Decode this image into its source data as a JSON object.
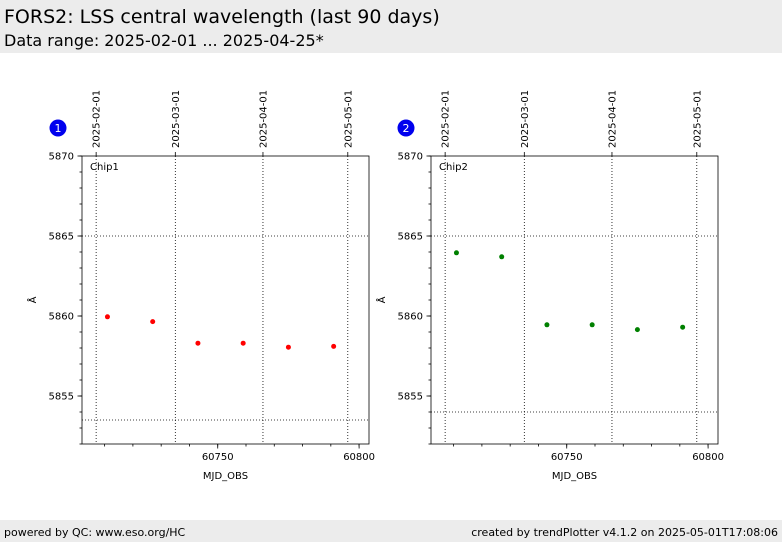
{
  "header": {
    "title": "FORS2: LSS central wavelength (last 90 days)",
    "subtitle": "Data range: 2025-02-01 ... 2025-04-25*"
  },
  "footer": {
    "left": "powered by QC: www.eso.org/HC",
    "right": "created by trendPlotter v4.1.2 on 2025-05-01T17:08:06"
  },
  "colors": {
    "chip1": "#ff0000",
    "chip2": "#008000",
    "badge": "#0000ee",
    "header_bg": "#ececec"
  },
  "chart_data": [
    {
      "type": "scatter",
      "badge": "1",
      "label": "Chip1",
      "xlabel": "MJD_OBS",
      "ylabel": "Å",
      "xlim": [
        60702.0,
        60803.5
      ],
      "ylim": [
        5852.0,
        5870.0
      ],
      "xticks": [
        60750,
        60800
      ],
      "yticks": [
        5855,
        5860,
        5865,
        5870
      ],
      "top_ticks": [
        {
          "label": "2025-02-01",
          "mjd": 60707
        },
        {
          "label": "2025-03-01",
          "mjd": 60735
        },
        {
          "label": "2025-04-01",
          "mjd": 60766
        },
        {
          "label": "2025-05-01",
          "mjd": 60796
        }
      ],
      "ref_lines": [
        5865.0,
        5853.5
      ],
      "color": "#ff0000",
      "points": [
        {
          "x": 60711,
          "y": 5859.95
        },
        {
          "x": 60727,
          "y": 5859.65
        },
        {
          "x": 60743,
          "y": 5858.3
        },
        {
          "x": 60759,
          "y": 5858.3
        },
        {
          "x": 60775,
          "y": 5858.05
        },
        {
          "x": 60791,
          "y": 5858.1
        }
      ]
    },
    {
      "type": "scatter",
      "badge": "2",
      "label": "Chip2",
      "xlabel": "MJD_OBS",
      "ylabel": "Å",
      "xlim": [
        60702.0,
        60803.5
      ],
      "ylim": [
        5852.0,
        5870.0
      ],
      "xticks": [
        60750,
        60800
      ],
      "yticks": [
        5855,
        5860,
        5865,
        5870
      ],
      "top_ticks": [
        {
          "label": "2025-02-01",
          "mjd": 60707
        },
        {
          "label": "2025-03-01",
          "mjd": 60735
        },
        {
          "label": "2025-04-01",
          "mjd": 60766
        },
        {
          "label": "2025-05-01",
          "mjd": 60796
        }
      ],
      "ref_lines": [
        5865.0,
        5854.0
      ],
      "color": "#008000",
      "points": [
        {
          "x": 60711,
          "y": 5863.95
        },
        {
          "x": 60727,
          "y": 5863.7
        },
        {
          "x": 60743,
          "y": 5859.45
        },
        {
          "x": 60759,
          "y": 5859.45
        },
        {
          "x": 60775,
          "y": 5859.15
        },
        {
          "x": 60791,
          "y": 5859.3
        }
      ]
    }
  ]
}
